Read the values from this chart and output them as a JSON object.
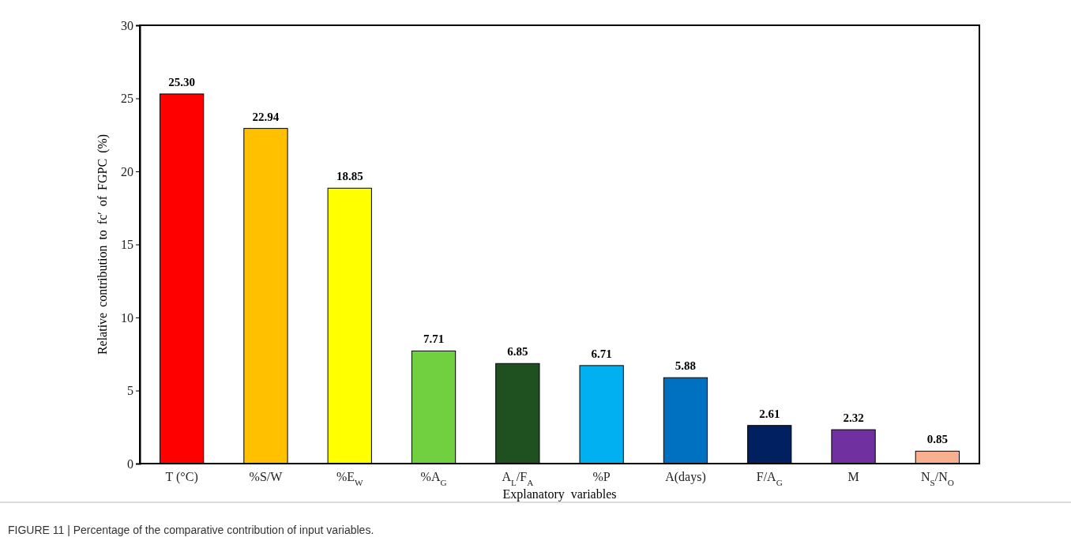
{
  "chart_data": {
    "type": "bar",
    "xlabel": "Explanatory variables",
    "ylabel": "Relative contribution to fc′ of FGPC (%)",
    "categories": [
      "T (°C)",
      "%S/W",
      "%E$_{W}$",
      "%A$_{G}$",
      "A$_{L}$/F$_{A}$",
      "%P",
      "A(days)",
      "F/A$_{G}$",
      "M",
      "N$_{S}$/N$_{O}$"
    ],
    "values": [
      25.3,
      22.94,
      18.85,
      7.71,
      6.85,
      6.71,
      5.88,
      2.61,
      2.32,
      0.85
    ],
    "value_labels": [
      "25.30",
      "22.94",
      "18.85",
      "7.71",
      "6.85",
      "6.71",
      "5.88",
      "2.61",
      "2.32",
      "0.85"
    ],
    "colors": [
      "#ff0000",
      "#ffc000",
      "#ffff00",
      "#70d040",
      "#1e5020",
      "#00b0f0",
      "#0070c0",
      "#002060",
      "#7030a0",
      "#f8b090"
    ],
    "ylim": [
      0,
      30
    ],
    "yticks": [
      0,
      5,
      10,
      15,
      20,
      25,
      30
    ],
    "grid": false,
    "annotations": [
      "FIGURE 11 | Percentage of the comparative contribution of input variables."
    ]
  }
}
